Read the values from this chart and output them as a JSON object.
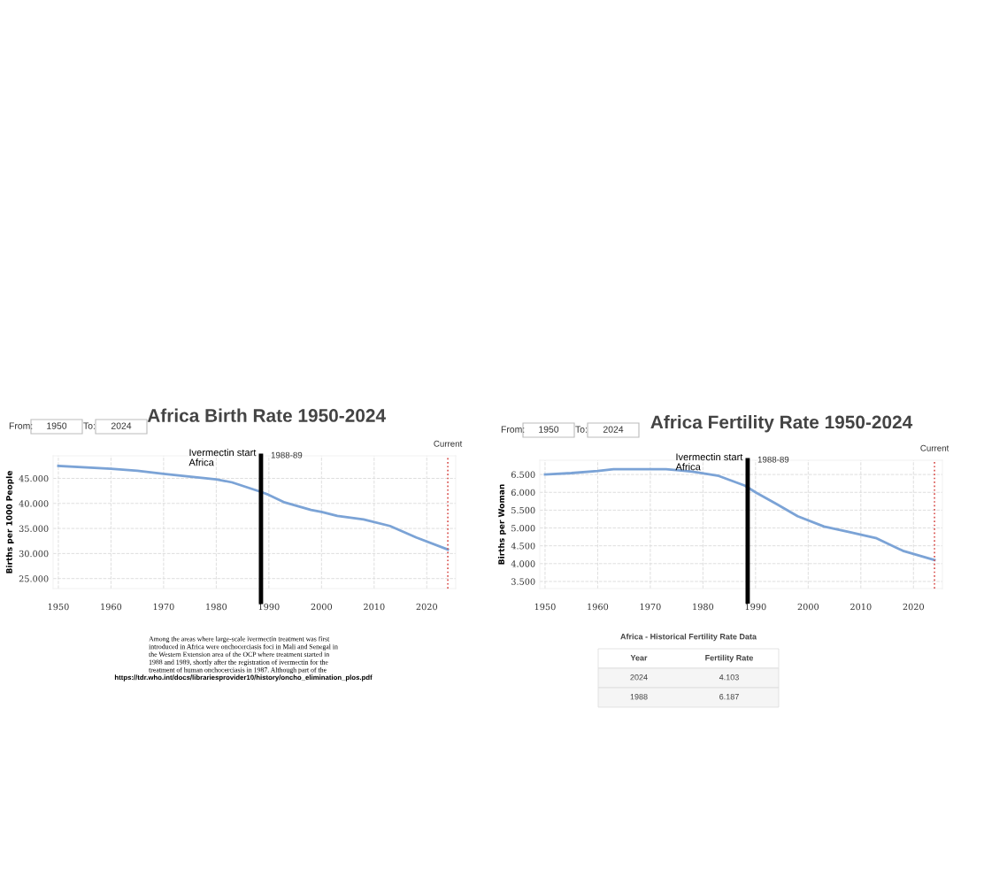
{
  "chart_data": [
    {
      "type": "line",
      "title": "Africa Birth Rate 1950-2024",
      "ylabel": "Births per 1000 People",
      "x": [
        1950,
        1960,
        1965,
        1970,
        1980,
        1983,
        1988.5,
        1990,
        1993,
        1998,
        2000,
        2003,
        2008,
        2013,
        2018,
        2024
      ],
      "series": [
        {
          "color": "#7ba3d6",
          "values": [
            47.5,
            46.9,
            46.5,
            45.9,
            44.8,
            44.2,
            42.3,
            41.7,
            40.2,
            38.7,
            38.3,
            37.5,
            36.8,
            35.5,
            33.2,
            30.8
          ]
        }
      ],
      "xlim": [
        1949,
        2025.5
      ],
      "ylim": [
        23,
        49.5
      ],
      "xticks": [
        1950,
        1960,
        1970,
        1980,
        1990,
        2000,
        2010,
        2020
      ],
      "yticks": [
        {
          "value": 25,
          "label": "25.000"
        },
        {
          "value": 30,
          "label": "30.000"
        },
        {
          "value": 35,
          "label": "35.000"
        },
        {
          "value": 40,
          "label": "40.000"
        },
        {
          "value": 45,
          "label": "45.000"
        }
      ],
      "grid": true,
      "marker": "none",
      "line_style": "solid",
      "ref_lines": [
        {
          "axis": "x",
          "value": 1988.5,
          "label": "1988-89",
          "color": "#000000",
          "line_style": "solid"
        },
        {
          "axis": "x",
          "value": 2024,
          "label": "Current",
          "color": "#d9534f",
          "line_style": "dotted"
        }
      ],
      "annotations": [
        "From:",
        "1950",
        "To:",
        "2024",
        "Ivermectin start\nAfrica",
        "Among the areas where large-scale ivermectin treatment was first\nintroduced in Africa were onchocerciasis foci in Mali and Senegal in\nthe Western Extension area of the OCP where treatment started in\n1988 and 1989, shortly after the registration of ivermectin for the\ntreatment of human onchocerciasis in 1987. Although part of the",
        "https://tdr.who.int/docs/librariesprovider10/history/oncho_elimination_plos.pdf"
      ]
    },
    {
      "type": "line",
      "title": "Africa Fertility Rate 1950-2024",
      "ylabel": "Births per Woman",
      "x": [
        1950,
        1955,
        1960,
        1963,
        1970,
        1973,
        1978,
        1983,
        1988,
        1990,
        1994,
        1998,
        2003,
        2008,
        2013,
        2018,
        2024
      ],
      "series": [
        {
          "color": "#7ba3d6",
          "values": [
            6.5,
            6.54,
            6.6,
            6.65,
            6.65,
            6.65,
            6.58,
            6.46,
            6.187,
            6.0,
            5.67,
            5.33,
            5.04,
            4.88,
            4.71,
            4.36,
            4.103
          ]
        }
      ],
      "xlim": [
        1949,
        2025.5
      ],
      "ylim": [
        3.3,
        6.9
      ],
      "xticks": [
        1950,
        1960,
        1970,
        1980,
        1990,
        2000,
        2010,
        2020
      ],
      "yticks": [
        {
          "value": 3.5,
          "label": "3.500"
        },
        {
          "value": 4.0,
          "label": "4.000"
        },
        {
          "value": 4.5,
          "label": "4.500"
        },
        {
          "value": 5.0,
          "label": "5.000"
        },
        {
          "value": 5.5,
          "label": "5.500"
        },
        {
          "value": 6.0,
          "label": "6.000"
        },
        {
          "value": 6.5,
          "label": "6.500"
        }
      ],
      "grid": true,
      "marker": "none",
      "line_style": "solid",
      "ref_lines": [
        {
          "axis": "x",
          "value": 1988.5,
          "label": "1988-89",
          "color": "#000000",
          "line_style": "solid"
        },
        {
          "axis": "x",
          "value": 2024,
          "label": "Current",
          "color": "#d9534f",
          "line_style": "dotted"
        }
      ],
      "annotations": [
        "From:",
        "1950",
        "To:",
        "2024",
        "Ivermectin start\nAfrica",
        "Africa - Historical Fertility Rate Data",
        "Year",
        "Fertility Rate",
        "2024",
        "4.103",
        "1988",
        "6.187"
      ]
    }
  ]
}
